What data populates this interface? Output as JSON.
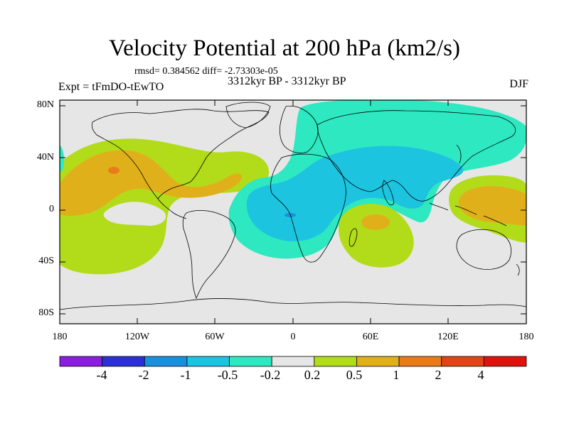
{
  "header": {
    "title": "Velocity Potential at 200 hPa (km2/s)",
    "stats": "rmsd= 0.384562 diff= -2.73303e-05",
    "experiment": "Expt = tFmDO-tEwTO",
    "period": "3312kyr BP - 3312kyr BP",
    "season": "DJF"
  },
  "axes": {
    "lat_labels": [
      "80N",
      "40N",
      "0",
      "40S",
      "80S"
    ],
    "lon_labels": [
      "180",
      "120W",
      "60W",
      "0",
      "60E",
      "120E",
      "180"
    ]
  },
  "colorbar": {
    "labels": [
      "-4",
      "-2",
      "-1",
      "-0.5",
      "-0.2",
      "0.2",
      "0.5",
      "1",
      "2",
      "4"
    ],
    "colors": [
      "#8a1fe0",
      "#2c2fd6",
      "#1a8fdc",
      "#1cc4e0",
      "#2de8c0",
      "#e6e6e6",
      "#b2dc1a",
      "#e0b01a",
      "#e87c1a",
      "#e04418",
      "#e0120e"
    ]
  },
  "fill_colors": {
    "ocean": "#e6e6e6",
    "green": "#b2dc1a",
    "orange": "#e0b01a",
    "dark_orange": "#e87c1a",
    "cyan": "#2de8c0",
    "light_blue": "#1cc4e0",
    "blue": "#1a8fdc"
  }
}
